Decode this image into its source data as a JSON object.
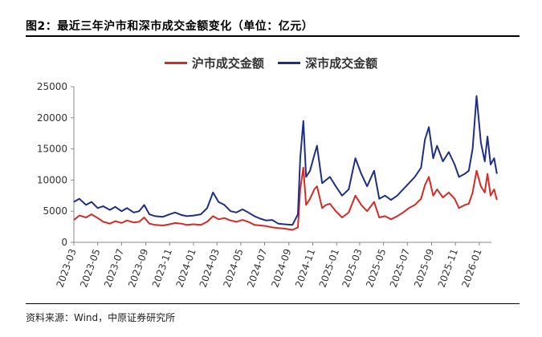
{
  "figure": {
    "title": "图2：最近三年沪市和深市成交金额变化（单位：亿元）",
    "source": "资料来源：Wind，中原证券研究所"
  },
  "chart_data": {
    "type": "line",
    "legend_position": "top",
    "grid": false,
    "ylim": [
      0,
      25000
    ],
    "yticks": [
      "0",
      "5000",
      "10000",
      "15000",
      "20000",
      "25000"
    ],
    "xticks": [
      "2023-03",
      "2023-05",
      "2023-07",
      "2023-09",
      "2023-11",
      "2024-01",
      "2024-03",
      "2024-05",
      "2024-07",
      "2024-09",
      "2024-11",
      "2025-01",
      "2025-03",
      "2025-05",
      "2025-07",
      "2025-09",
      "2025-11",
      "2026-01"
    ],
    "x_range": [
      "2023-03",
      "2026-02"
    ],
    "series": [
      {
        "name": "沪市成交金额",
        "color": "#d62a27",
        "points": [
          [
            "2023-03-01",
            3600
          ],
          [
            "2023-03-15",
            4300
          ],
          [
            "2023-04-01",
            4000
          ],
          [
            "2023-04-15",
            4500
          ],
          [
            "2023-05-01",
            3900
          ],
          [
            "2023-05-15",
            3300
          ],
          [
            "2023-06-01",
            3000
          ],
          [
            "2023-06-15",
            3400
          ],
          [
            "2023-07-01",
            3100
          ],
          [
            "2023-07-15",
            3500
          ],
          [
            "2023-08-01",
            3200
          ],
          [
            "2023-08-15",
            3300
          ],
          [
            "2023-08-28",
            4000
          ],
          [
            "2023-09-10",
            3000
          ],
          [
            "2023-09-25",
            2800
          ],
          [
            "2023-10-15",
            2700
          ],
          [
            "2023-11-01",
            2900
          ],
          [
            "2023-11-15",
            3100
          ],
          [
            "2023-12-01",
            3000
          ],
          [
            "2023-12-15",
            2800
          ],
          [
            "2024-01-01",
            2900
          ],
          [
            "2024-01-20",
            2800
          ],
          [
            "2024-02-05",
            3300
          ],
          [
            "2024-02-20",
            4200
          ],
          [
            "2024-03-05",
            3700
          ],
          [
            "2024-03-20",
            3900
          ],
          [
            "2024-04-05",
            3500
          ],
          [
            "2024-04-20",
            3300
          ],
          [
            "2024-05-05",
            3600
          ],
          [
            "2024-05-20",
            3300
          ],
          [
            "2024-06-05",
            2800
          ],
          [
            "2024-06-20",
            2700
          ],
          [
            "2024-07-05",
            2600
          ],
          [
            "2024-07-20",
            2400
          ],
          [
            "2024-08-05",
            2300
          ],
          [
            "2024-08-20",
            2200
          ],
          [
            "2024-09-10",
            2000
          ],
          [
            "2024-09-24",
            2400
          ],
          [
            "2024-09-30",
            8500
          ],
          [
            "2024-10-08",
            12000
          ],
          [
            "2024-10-15",
            6000
          ],
          [
            "2024-10-25",
            7000
          ],
          [
            "2024-11-05",
            8500
          ],
          [
            "2024-11-12",
            9000
          ],
          [
            "2024-11-25",
            5500
          ],
          [
            "2024-12-05",
            6000
          ],
          [
            "2024-12-15",
            6200
          ],
          [
            "2024-12-30",
            5000
          ],
          [
            "2025-01-15",
            4000
          ],
          [
            "2025-02-01",
            4800
          ],
          [
            "2025-02-18",
            7500
          ],
          [
            "2025-03-05",
            6000
          ],
          [
            "2025-03-20",
            5000
          ],
          [
            "2025-04-07",
            6500
          ],
          [
            "2025-04-20",
            4000
          ],
          [
            "2025-05-05",
            4200
          ],
          [
            "2025-05-20",
            3700
          ],
          [
            "2025-06-05",
            4200
          ],
          [
            "2025-06-20",
            4800
          ],
          [
            "2025-07-05",
            5500
          ],
          [
            "2025-07-20",
            6000
          ],
          [
            "2025-08-05",
            7000
          ],
          [
            "2025-08-15",
            9200
          ],
          [
            "2025-08-25",
            10500
          ],
          [
            "2025-09-05",
            7500
          ],
          [
            "2025-09-15",
            8500
          ],
          [
            "2025-09-30",
            7200
          ],
          [
            "2025-10-15",
            8000
          ],
          [
            "2025-10-30",
            7000
          ],
          [
            "2025-11-10",
            5500
          ],
          [
            "2025-11-25",
            6000
          ],
          [
            "2025-12-05",
            6200
          ],
          [
            "2025-12-15",
            8000
          ],
          [
            "2025-12-25",
            11500
          ],
          [
            "2026-01-05",
            9000
          ],
          [
            "2026-01-15",
            8000
          ],
          [
            "2026-01-22",
            11000
          ],
          [
            "2026-01-30",
            7500
          ],
          [
            "2026-02-08",
            8500
          ],
          [
            "2026-02-15",
            6800
          ]
        ]
      },
      {
        "name": "深市成交金额",
        "color": "#1f2f86",
        "points": [
          [
            "2023-03-01",
            6500
          ],
          [
            "2023-03-15",
            7000
          ],
          [
            "2023-04-01",
            6000
          ],
          [
            "2023-04-15",
            6500
          ],
          [
            "2023-05-01",
            5500
          ],
          [
            "2023-05-15",
            5800
          ],
          [
            "2023-06-01",
            5200
          ],
          [
            "2023-06-15",
            5700
          ],
          [
            "2023-07-01",
            5000
          ],
          [
            "2023-07-15",
            5500
          ],
          [
            "2023-08-01",
            4800
          ],
          [
            "2023-08-15",
            5000
          ],
          [
            "2023-08-28",
            6000
          ],
          [
            "2023-09-10",
            4500
          ],
          [
            "2023-09-25",
            4200
          ],
          [
            "2023-10-15",
            4100
          ],
          [
            "2023-11-01",
            4500
          ],
          [
            "2023-11-15",
            4800
          ],
          [
            "2023-12-01",
            4400
          ],
          [
            "2023-12-15",
            4200
          ],
          [
            "2024-01-01",
            4300
          ],
          [
            "2024-01-20",
            4500
          ],
          [
            "2024-02-05",
            5500
          ],
          [
            "2024-02-20",
            8000
          ],
          [
            "2024-03-05",
            6500
          ],
          [
            "2024-03-20",
            6000
          ],
          [
            "2024-04-05",
            5000
          ],
          [
            "2024-04-20",
            4800
          ],
          [
            "2024-05-05",
            5300
          ],
          [
            "2024-05-20",
            4800
          ],
          [
            "2024-06-05",
            4200
          ],
          [
            "2024-06-20",
            3800
          ],
          [
            "2024-07-05",
            3500
          ],
          [
            "2024-07-20",
            3600
          ],
          [
            "2024-08-05",
            3000
          ],
          [
            "2024-08-20",
            2900
          ],
          [
            "2024-09-10",
            2800
          ],
          [
            "2024-09-24",
            4500
          ],
          [
            "2024-09-30",
            13500
          ],
          [
            "2024-10-08",
            19500
          ],
          [
            "2024-10-15",
            10500
          ],
          [
            "2024-10-25",
            11500
          ],
          [
            "2024-11-05",
            14000
          ],
          [
            "2024-11-12",
            15500
          ],
          [
            "2024-11-25",
            9500
          ],
          [
            "2024-12-05",
            10000
          ],
          [
            "2024-12-15",
            10500
          ],
          [
            "2024-12-30",
            9000
          ],
          [
            "2025-01-15",
            7500
          ],
          [
            "2025-02-01",
            8500
          ],
          [
            "2025-02-18",
            13500
          ],
          [
            "2025-03-05",
            11000
          ],
          [
            "2025-03-20",
            9000
          ],
          [
            "2025-04-07",
            11500
          ],
          [
            "2025-04-20",
            7000
          ],
          [
            "2025-05-05",
            7500
          ],
          [
            "2025-05-20",
            6800
          ],
          [
            "2025-06-05",
            7500
          ],
          [
            "2025-06-20",
            8500
          ],
          [
            "2025-07-05",
            9500
          ],
          [
            "2025-07-20",
            10500
          ],
          [
            "2025-08-05",
            12000
          ],
          [
            "2025-08-15",
            16500
          ],
          [
            "2025-08-25",
            18500
          ],
          [
            "2025-09-05",
            13500
          ],
          [
            "2025-09-15",
            15500
          ],
          [
            "2025-09-30",
            13000
          ],
          [
            "2025-10-15",
            14500
          ],
          [
            "2025-10-30",
            12500
          ],
          [
            "2025-11-10",
            10500
          ],
          [
            "2025-11-25",
            11000
          ],
          [
            "2025-12-05",
            11500
          ],
          [
            "2025-12-15",
            15000
          ],
          [
            "2025-12-25",
            23500
          ],
          [
            "2026-01-05",
            16000
          ],
          [
            "2026-01-15",
            13000
          ],
          [
            "2026-01-22",
            17000
          ],
          [
            "2026-01-30",
            12500
          ],
          [
            "2026-02-08",
            13500
          ],
          [
            "2026-02-15",
            11000
          ]
        ]
      }
    ]
  }
}
